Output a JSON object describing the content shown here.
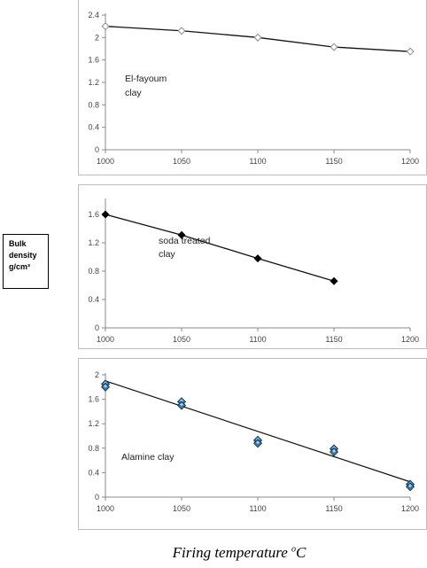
{
  "y_axis_title": {
    "line1": "Bulk",
    "line2": "density",
    "line3": "g/cm³"
  },
  "x_axis_title": {
    "text": "Firing temperature ",
    "superscript": "o",
    "unit": "C"
  },
  "chart_data": [
    {
      "type": "line",
      "annotation": [
        "El-fayoum",
        "clay"
      ],
      "x": [
        1000,
        1050,
        1100,
        1150,
        1200
      ],
      "series": [
        {
          "marker": "open-diamond",
          "color": "#8a8a8a",
          "values": [
            2.2,
            2.12,
            2.0,
            1.83,
            1.75
          ]
        }
      ],
      "xlim": [
        1000,
        1200
      ],
      "ylim": [
        0,
        2.4
      ],
      "yticks": [
        0,
        0.4,
        0.8,
        1.2,
        1.6,
        2,
        2.4
      ],
      "xticks": [
        1000,
        1050,
        1100,
        1150,
        1200
      ],
      "grid": false
    },
    {
      "type": "line",
      "annotation": [
        "soda treated",
        "clay"
      ],
      "x": [
        1000,
        1050,
        1100,
        1150
      ],
      "series": [
        {
          "marker": "filled-diamond",
          "color": "#000000",
          "values": [
            1.6,
            1.31,
            0.98,
            0.66
          ]
        }
      ],
      "xlim": [
        1000,
        1200
      ],
      "ylim": [
        0,
        1.8
      ],
      "yticks": [
        0,
        0.4,
        0.8,
        1.2,
        1.6
      ],
      "xticks": [
        1000,
        1050,
        1100,
        1150,
        1200
      ],
      "grid": false
    },
    {
      "type": "scatter",
      "annotation": [
        "Alamine clay"
      ],
      "x": [
        1000,
        1050,
        1100,
        1150,
        1200
      ],
      "series": [
        {
          "marker": "shaded-diamond",
          "color": "#2f6e9e",
          "values": [
            1.85,
            1.56,
            0.93,
            0.79,
            0.21
          ]
        },
        {
          "marker": "shaded-diamond",
          "color": "#2f6e9e",
          "values": [
            1.8,
            1.5,
            0.88,
            0.74,
            0.17
          ]
        }
      ],
      "trendline": {
        "from": [
          1000,
          1.9
        ],
        "to": [
          1200,
          0.25
        ]
      },
      "xlim": [
        1000,
        1200
      ],
      "ylim": [
        0,
        2
      ],
      "yticks": [
        0,
        0.4,
        0.8,
        1.2,
        1.6,
        2
      ],
      "xticks": [
        1000,
        1050,
        1100,
        1150,
        1200
      ],
      "grid": false
    }
  ]
}
